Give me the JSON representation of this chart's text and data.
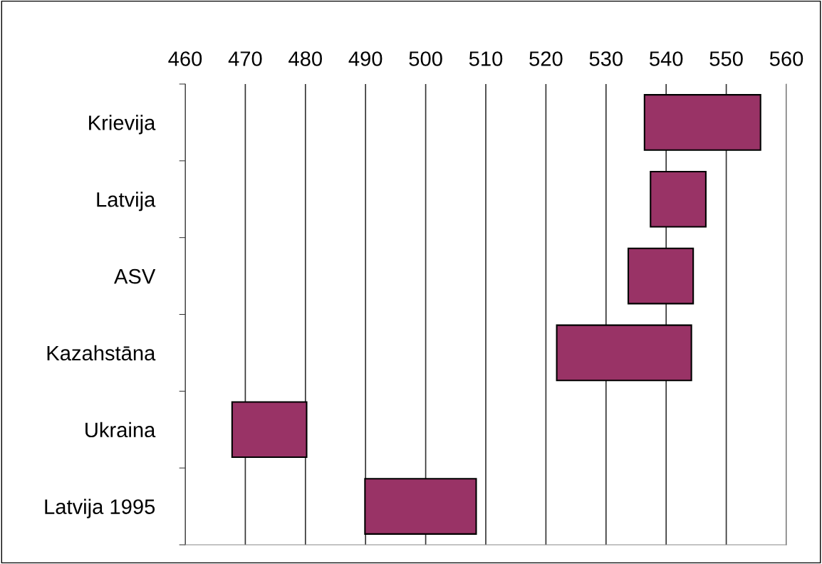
{
  "chart_data": {
    "type": "bar",
    "orientation": "horizontal",
    "categories": [
      "Krievija",
      "Latvija",
      "ASV",
      "Kazahstāna",
      "Ukraina",
      "Latvija 1995"
    ],
    "base": [
      536.4,
      537.4,
      533.7,
      521.8,
      467.8,
      489.9
    ],
    "values": [
      19.3,
      9.2,
      10.8,
      22.4,
      12.4,
      18.5
    ],
    "color": "#993366",
    "xlim": [
      460,
      560
    ],
    "xticks": [
      460,
      470,
      480,
      490,
      500,
      510,
      520,
      530,
      540,
      550,
      560
    ],
    "grid": "x"
  }
}
